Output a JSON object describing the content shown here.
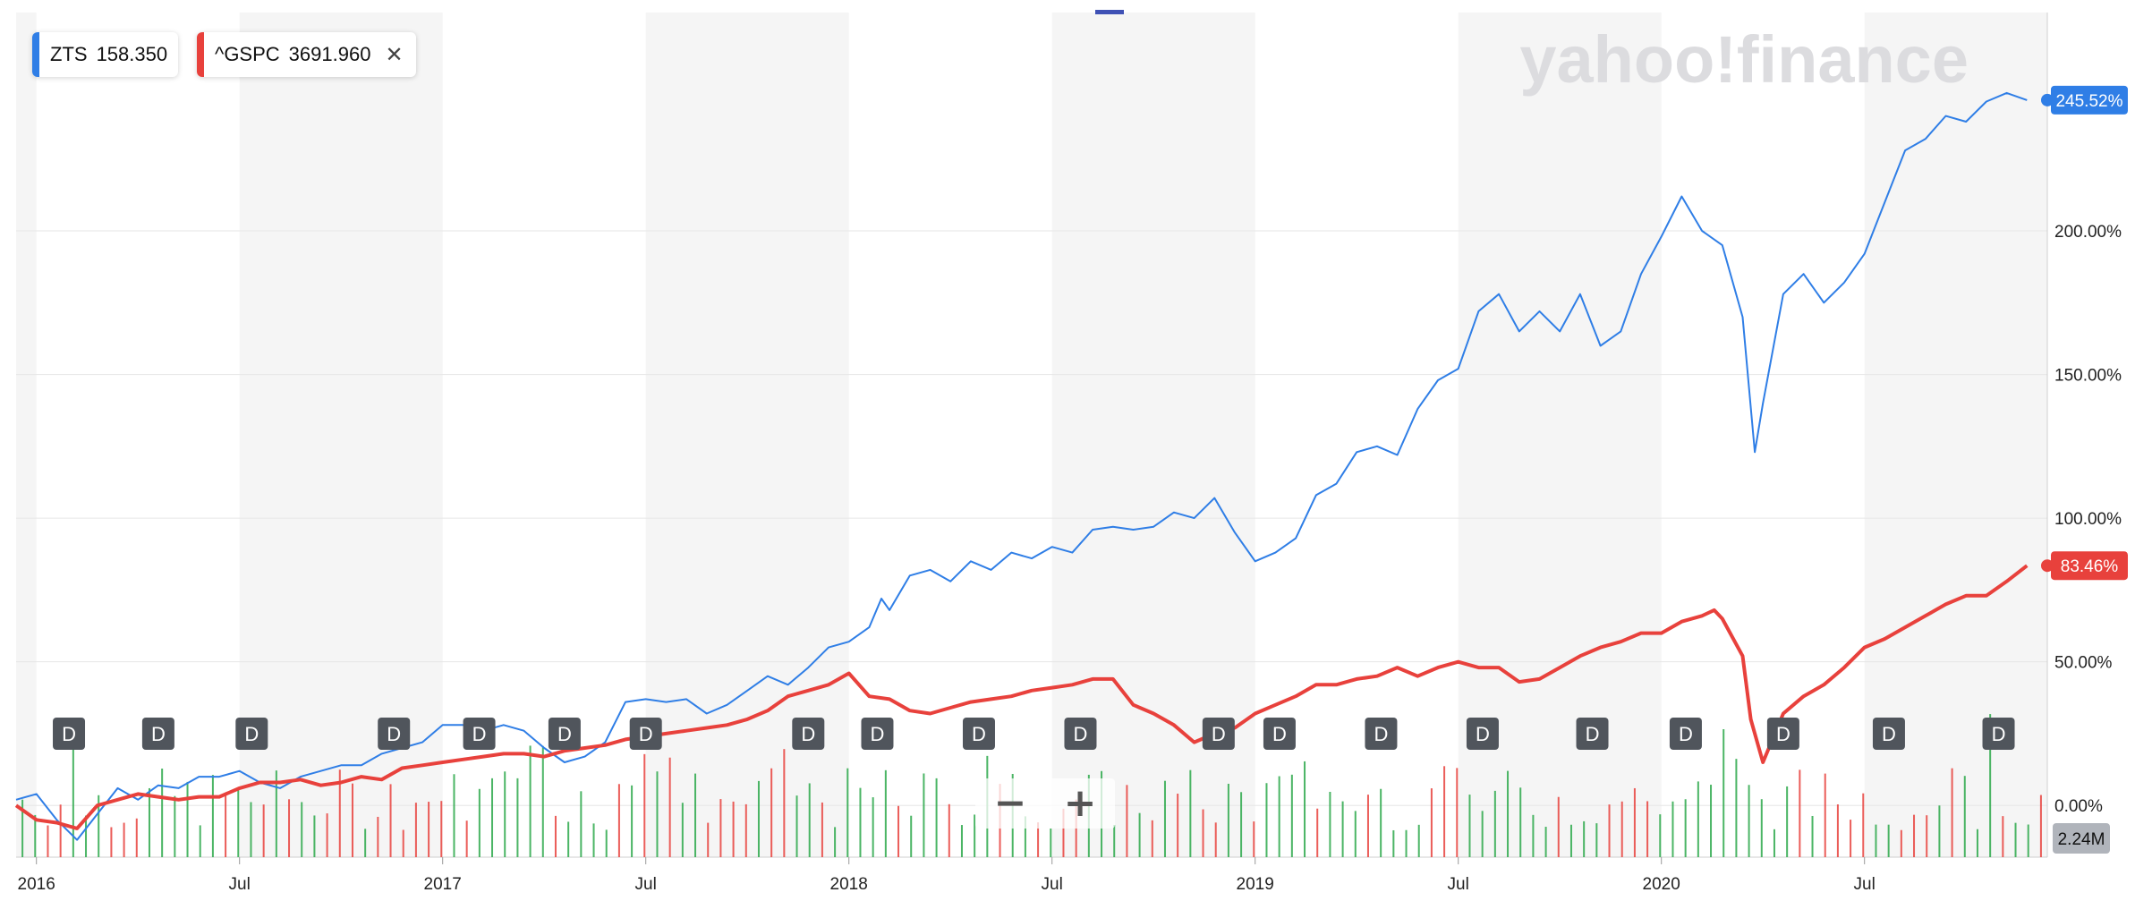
{
  "watermark": "yahoo!finance",
  "legend": [
    {
      "symbol": "ZTS",
      "value": "158.350",
      "color": "#2f7ee6",
      "close_icon": "close-icon"
    },
    {
      "symbol": "^GSPC",
      "value": "3691.960",
      "color": "#e8413c",
      "close_icon": "close-icon"
    }
  ],
  "zoom": {
    "minus": "−",
    "plus": "+",
    "minus_icon": "zoom-out-icon",
    "plus_icon": "zoom-in-icon"
  },
  "chart_data": {
    "type": "line",
    "x_tick_labels": [
      "2016",
      "Jul",
      "2017",
      "Jul",
      "2018",
      "Jul",
      "2019",
      "Jul",
      "2020",
      "Jul"
    ],
    "x_ticks": [
      2016.0,
      2016.5,
      2017.0,
      2017.5,
      2018.0,
      2018.5,
      2019.0,
      2019.5,
      2020.0,
      2020.5
    ],
    "xlim": [
      2015.95,
      2020.95
    ],
    "y_tick_labels": [
      "0.00%",
      "50.00%",
      "100.00%",
      "150.00%",
      "200.00%"
    ],
    "y_ticks": [
      0,
      50,
      100,
      150,
      200
    ],
    "ylim": [
      -18,
      276
    ],
    "ylabel": "",
    "grid": true,
    "series": [
      {
        "name": "ZTS",
        "color": "#2f7ee6",
        "last_label": "245.52%",
        "x": [
          2015.95,
          2016.0,
          2016.05,
          2016.1,
          2016.15,
          2016.2,
          2016.25,
          2016.3,
          2016.35,
          2016.4,
          2016.45,
          2016.5,
          2016.55,
          2016.6,
          2016.65,
          2016.7,
          2016.75,
          2016.8,
          2016.85,
          2016.9,
          2016.95,
          2017.0,
          2017.05,
          2017.1,
          2017.15,
          2017.2,
          2017.25,
          2017.3,
          2017.35,
          2017.4,
          2017.45,
          2017.5,
          2017.55,
          2017.6,
          2017.65,
          2017.7,
          2017.75,
          2017.8,
          2017.85,
          2017.9,
          2017.95,
          2018.0,
          2018.05,
          2018.08,
          2018.1,
          2018.15,
          2018.2,
          2018.25,
          2018.3,
          2018.35,
          2018.4,
          2018.45,
          2018.5,
          2018.55,
          2018.6,
          2018.65,
          2018.7,
          2018.75,
          2018.8,
          2018.85,
          2018.9,
          2018.95,
          2019.0,
          2019.05,
          2019.1,
          2019.15,
          2019.2,
          2019.25,
          2019.3,
          2019.35,
          2019.4,
          2019.45,
          2019.5,
          2019.55,
          2019.6,
          2019.65,
          2019.7,
          2019.75,
          2019.8,
          2019.85,
          2019.9,
          2019.95,
          2020.0,
          2020.05,
          2020.1,
          2020.15,
          2020.2,
          2020.23,
          2020.25,
          2020.3,
          2020.35,
          2020.4,
          2020.45,
          2020.5,
          2020.55,
          2020.6,
          2020.65,
          2020.7,
          2020.75,
          2020.8,
          2020.85,
          2020.9
        ],
        "y": [
          2,
          4,
          -5,
          -12,
          -3,
          6,
          2,
          7,
          6,
          10,
          10,
          12,
          8,
          6,
          10,
          12,
          14,
          14,
          18,
          20,
          22,
          28,
          28,
          26,
          28,
          26,
          20,
          15,
          17,
          22,
          36,
          37,
          36,
          37,
          32,
          35,
          40,
          45,
          42,
          48,
          55,
          57,
          62,
          72,
          68,
          80,
          82,
          78,
          85,
          82,
          88,
          86,
          90,
          88,
          96,
          97,
          96,
          97,
          102,
          100,
          107,
          95,
          85,
          88,
          93,
          108,
          112,
          123,
          125,
          122,
          138,
          148,
          152,
          172,
          178,
          165,
          172,
          165,
          178,
          160,
          165,
          185,
          198,
          212,
          200,
          195,
          170,
          123,
          140,
          178,
          185,
          175,
          182,
          192,
          210,
          228,
          232,
          240,
          238,
          245,
          248,
          245.52
        ]
      },
      {
        "name": "^GSPC",
        "color": "#e8413c",
        "last_label": "83.46%",
        "x": [
          2015.95,
          2016.0,
          2016.05,
          2016.1,
          2016.15,
          2016.2,
          2016.25,
          2016.3,
          2016.35,
          2016.4,
          2016.45,
          2016.5,
          2016.55,
          2016.6,
          2016.65,
          2016.7,
          2016.75,
          2016.8,
          2016.85,
          2016.9,
          2016.95,
          2017.0,
          2017.05,
          2017.1,
          2017.15,
          2017.2,
          2017.25,
          2017.3,
          2017.35,
          2017.4,
          2017.45,
          2017.5,
          2017.55,
          2017.6,
          2017.65,
          2017.7,
          2017.75,
          2017.8,
          2017.85,
          2017.9,
          2017.95,
          2018.0,
          2018.05,
          2018.1,
          2018.15,
          2018.2,
          2018.25,
          2018.3,
          2018.35,
          2018.4,
          2018.45,
          2018.5,
          2018.55,
          2018.6,
          2018.65,
          2018.7,
          2018.75,
          2018.8,
          2018.85,
          2018.9,
          2018.95,
          2019.0,
          2019.05,
          2019.1,
          2019.15,
          2019.2,
          2019.25,
          2019.3,
          2019.35,
          2019.4,
          2019.45,
          2019.5,
          2019.55,
          2019.6,
          2019.65,
          2019.7,
          2019.75,
          2019.8,
          2019.85,
          2019.9,
          2019.95,
          2020.0,
          2020.05,
          2020.1,
          2020.13,
          2020.15,
          2020.2,
          2020.22,
          2020.25,
          2020.3,
          2020.35,
          2020.4,
          2020.45,
          2020.5,
          2020.55,
          2020.6,
          2020.65,
          2020.7,
          2020.75,
          2020.8,
          2020.85,
          2020.9
        ],
        "y": [
          0,
          -5,
          -6,
          -8,
          0,
          2,
          4,
          3,
          2,
          3,
          3,
          6,
          8,
          8,
          9,
          7,
          8,
          10,
          9,
          13,
          14,
          15,
          16,
          17,
          18,
          18,
          17,
          19,
          20,
          21,
          23,
          24,
          25,
          26,
          27,
          28,
          30,
          33,
          38,
          40,
          42,
          46,
          38,
          37,
          33,
          32,
          34,
          36,
          37,
          38,
          40,
          41,
          42,
          44,
          44,
          35,
          32,
          28,
          22,
          25,
          27,
          32,
          35,
          38,
          42,
          42,
          44,
          45,
          48,
          45,
          48,
          50,
          48,
          48,
          43,
          44,
          48,
          52,
          55,
          57,
          60,
          60,
          64,
          66,
          68,
          65,
          52,
          30,
          15,
          32,
          38,
          42,
          48,
          55,
          58,
          62,
          66,
          70,
          73,
          73,
          78,
          83.46
        ]
      }
    ],
    "events": {
      "label": "D",
      "x": [
        2016.08,
        2016.3,
        2016.53,
        2016.88,
        2017.09,
        2017.3,
        2017.5,
        2017.9,
        2018.07,
        2018.32,
        2018.57,
        2018.91,
        2019.06,
        2019.31,
        2019.56,
        2019.83,
        2020.06,
        2020.3,
        2020.56,
        2020.83
      ]
    },
    "volume": {
      "last_label": "2.24M",
      "bars": 160
    }
  }
}
